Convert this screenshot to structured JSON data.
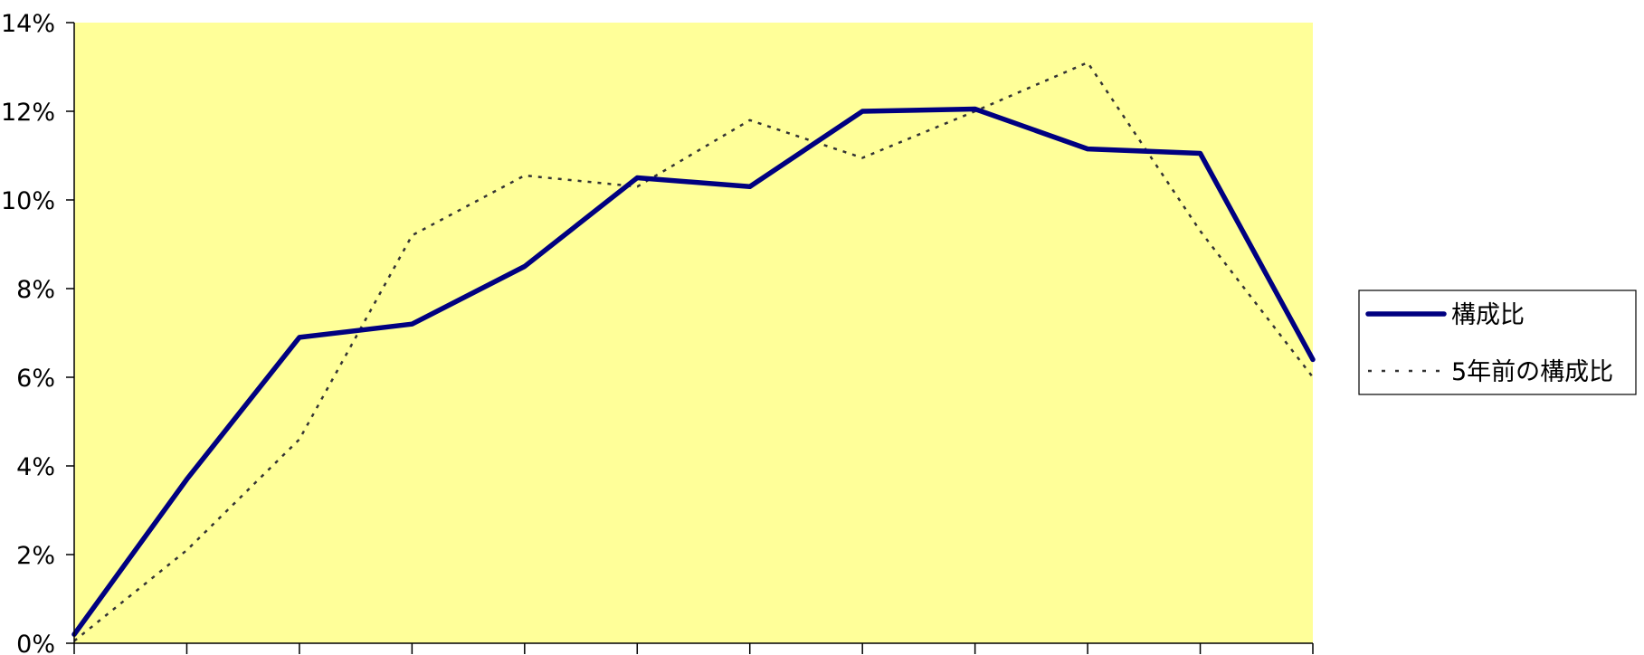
{
  "chart_data": {
    "type": "line",
    "title": "",
    "xlabel": "",
    "ylabel": "",
    "ylim": [
      0,
      14
    ],
    "y_ticks": [
      "0%",
      "2%",
      "4%",
      "6%",
      "8%",
      "10%",
      "12%",
      "14%"
    ],
    "x_points": 12,
    "x_tick_labels_shown": false,
    "grid": false,
    "plot_background": "#ffff99",
    "legend_position": "right",
    "series": [
      {
        "name": "構成比",
        "color": "#000080",
        "style": "solid",
        "values": [
          0.2,
          3.7,
          6.9,
          7.2,
          8.5,
          10.5,
          10.3,
          12.0,
          12.05,
          11.15,
          11.05,
          6.4
        ]
      },
      {
        "name": "5年前の構成比",
        "color": "#333333",
        "style": "dotted",
        "values": [
          0.05,
          2.1,
          4.6,
          9.2,
          10.55,
          10.3,
          11.8,
          10.95,
          12.0,
          13.1,
          9.3,
          6.0
        ]
      }
    ]
  }
}
